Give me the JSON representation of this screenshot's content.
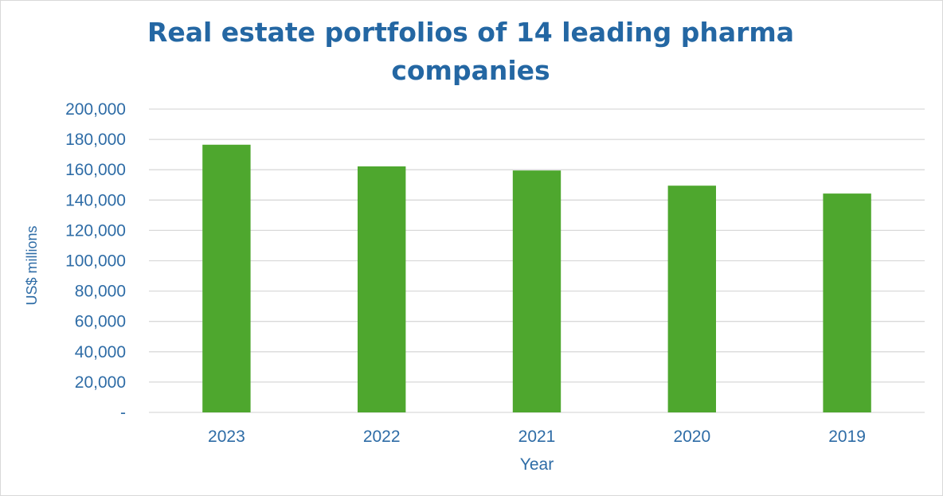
{
  "chart_data": {
    "type": "bar",
    "title": "Real estate portfolios of 14 leading pharma companies",
    "xlabel": "Year",
    "ylabel": "US$ millions",
    "categories": [
      "2023",
      "2022",
      "2021",
      "2020",
      "2019"
    ],
    "values": [
      176500,
      162200,
      159500,
      149500,
      144300
    ],
    "ylim": [
      0,
      200000
    ],
    "yticks": [
      {
        "value": 0,
        "label": "-"
      },
      {
        "value": 20000,
        "label": "20,000"
      },
      {
        "value": 40000,
        "label": "40,000"
      },
      {
        "value": 60000,
        "label": "60,000"
      },
      {
        "value": 80000,
        "label": "80,000"
      },
      {
        "value": 100000,
        "label": "100,000"
      },
      {
        "value": 120000,
        "label": "120,000"
      },
      {
        "value": 140000,
        "label": "140,000"
      },
      {
        "value": 160000,
        "label": "160,000"
      },
      {
        "value": 180000,
        "label": "180,000"
      },
      {
        "value": 200000,
        "label": "200,000"
      }
    ],
    "grid": true,
    "legend": "none",
    "colors": {
      "bar": "#4ea72e",
      "text": "#2e6ca6",
      "title": "#2467a3",
      "grid": "#d9d9d9"
    }
  }
}
